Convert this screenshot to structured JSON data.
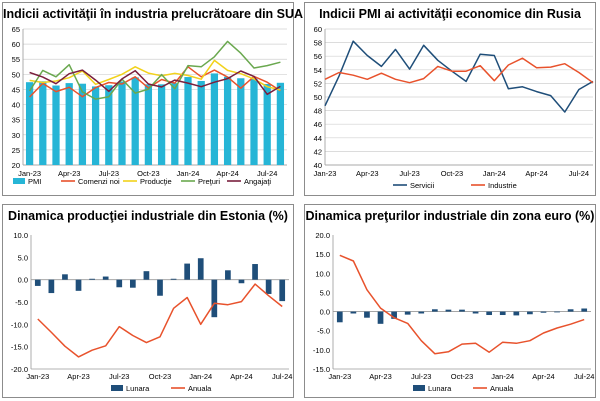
{
  "chart_data": [
    {
      "type": "bar+line",
      "title": "Indicii activităţii în industria prelucrătoare din SUA",
      "ylim": [
        20,
        65
      ],
      "yticks": [
        20,
        25,
        30,
        35,
        40,
        45,
        50,
        55,
        60,
        65
      ],
      "months": 20,
      "xlabels": [
        {
          "i": 0,
          "text": "Jan-23"
        },
        {
          "i": 3,
          "text": "Apr-23"
        },
        {
          "i": 6,
          "text": "Jul-23"
        },
        {
          "i": 9,
          "text": "Oct-23"
        },
        {
          "i": 12,
          "text": "Jan-24"
        },
        {
          "i": 15,
          "text": "Apr-24"
        },
        {
          "i": 18,
          "text": "Jul-24"
        }
      ],
      "bars": {
        "name": "PMI",
        "color": "#26b5d6",
        "values": [
          47.4,
          47.7,
          46.3,
          47.1,
          46.9,
          46.0,
          46.4,
          47.6,
          49.0,
          46.7,
          46.7,
          47.1,
          49.1,
          47.8,
          50.3,
          49.2,
          48.7,
          48.5,
          46.8,
          47.2
        ]
      },
      "lines": [
        {
          "name": "Comenzi noi",
          "color": "#e8522c",
          "values": [
            42.5,
            47.0,
            44.3,
            45.7,
            42.6,
            45.6,
            47.3,
            46.8,
            49.2,
            45.5,
            48.3,
            47.1,
            52.5,
            49.2,
            51.4,
            49.1,
            45.4,
            49.3,
            47.4,
            44.6
          ]
        },
        {
          "name": "Producţie",
          "color": "#f2d21c",
          "values": [
            48.0,
            47.3,
            47.8,
            48.9,
            51.1,
            46.7,
            48.3,
            50.0,
            52.5,
            50.4,
            49.5,
            50.3,
            49.6,
            48.4,
            54.6,
            51.3,
            50.2,
            48.5,
            45.9,
            44.8
          ]
        },
        {
          "name": "Preţuri",
          "color": "#6aa84f",
          "values": [
            44.5,
            51.3,
            49.2,
            53.2,
            44.2,
            41.8,
            42.6,
            48.4,
            43.8,
            45.1,
            49.9,
            45.2,
            52.9,
            52.5,
            55.8,
            60.9,
            57.0,
            52.1,
            52.9,
            54.0
          ]
        },
        {
          "name": "Angajaţi",
          "color": "#7a1f3d",
          "values": [
            50.6,
            49.1,
            46.9,
            50.2,
            51.4,
            48.1,
            44.4,
            48.5,
            51.2,
            46.8,
            45.8,
            48.1,
            47.1,
            45.9,
            47.4,
            48.6,
            51.1,
            49.3,
            43.4,
            46.0
          ]
        }
      ]
    },
    {
      "type": "line",
      "title": "Indicii PMI ai activităţii economice din Rusia",
      "ylim": [
        40,
        60
      ],
      "yticks": [
        40,
        42,
        44,
        46,
        48,
        50,
        52,
        54,
        56,
        58,
        60
      ],
      "months": 20,
      "xlabels": [
        {
          "i": 0,
          "text": "Jan-23"
        },
        {
          "i": 3,
          "text": "Apr-23"
        },
        {
          "i": 6,
          "text": "Jul-23"
        },
        {
          "i": 9,
          "text": "Oct-23"
        },
        {
          "i": 12,
          "text": "Jan-24"
        },
        {
          "i": 15,
          "text": "Apr-24"
        },
        {
          "i": 18,
          "text": "Jul-24"
        }
      ],
      "lines": [
        {
          "name": "Servicii",
          "color": "#1f4e79",
          "values": [
            48.7,
            53.1,
            58.2,
            56.1,
            54.5,
            57.0,
            54.1,
            57.6,
            55.4,
            53.8,
            52.3,
            56.3,
            56.1,
            51.2,
            51.5,
            50.8,
            50.2,
            47.8,
            51.1,
            52.3
          ]
        },
        {
          "name": "Industrie",
          "color": "#e8522c",
          "values": [
            52.6,
            53.6,
            53.2,
            52.6,
            53.5,
            52.6,
            52.1,
            52.7,
            54.5,
            53.8,
            53.8,
            54.6,
            52.4,
            54.7,
            55.7,
            54.3,
            54.4,
            54.9,
            53.6,
            52.1
          ]
        }
      ]
    },
    {
      "type": "bar+line",
      "title": "Dinamica producţiei industriale din Estonia (%)",
      "ylim": [
        -20,
        10
      ],
      "yticks": [
        -20,
        -15,
        -10,
        -5,
        0,
        5,
        10
      ],
      "ytick_labels": [
        "-20.0",
        "-15.0",
        "-10.0",
        "-5.0",
        "0.0",
        "5.0",
        "10.0"
      ],
      "months": 19,
      "xlabels": [
        {
          "i": 0,
          "text": "Jan-23"
        },
        {
          "i": 3,
          "text": "Apr-23"
        },
        {
          "i": 6,
          "text": "Jul-23"
        },
        {
          "i": 9,
          "text": "Oct-23"
        },
        {
          "i": 12,
          "text": "Jan-24"
        },
        {
          "i": 15,
          "text": "Apr-24"
        },
        {
          "i": 18,
          "text": "Jul-24"
        }
      ],
      "bars": {
        "name": "Lunara",
        "color": "#1f4e79",
        "values": [
          -1.4,
          -3.0,
          1.2,
          -2.5,
          0.2,
          0.7,
          -1.7,
          -1.8,
          1.9,
          -3.6,
          0.2,
          3.6,
          4.8,
          -8.4,
          2.1,
          -0.8,
          3.5,
          -3.2,
          -4.8
        ]
      },
      "lines": [
        {
          "name": "Anuala",
          "color": "#e8522c",
          "values": [
            -8.8,
            -11.8,
            -14.9,
            -17.3,
            -15.8,
            -14.8,
            -10.5,
            -12.5,
            -14.1,
            -12.8,
            -6.4,
            -4.0,
            -10.0,
            -5.3,
            -5.6,
            -4.9,
            -1.0,
            -3.6,
            -6.0
          ]
        }
      ]
    },
    {
      "type": "bar+line",
      "title": "Dinamica preţurilor industriale din zona euro (%)",
      "ylim": [
        -15,
        20
      ],
      "yticks": [
        -15,
        -10,
        -5,
        0,
        5,
        10,
        15,
        20
      ],
      "ytick_labels": [
        "-15.0",
        "-10.0",
        "-5.0",
        "0.0",
        "5.0",
        "10.0",
        "15.0",
        "20.0"
      ],
      "months": 19,
      "xlabels": [
        {
          "i": 0,
          "text": "Jan-23"
        },
        {
          "i": 3,
          "text": "Apr-23"
        },
        {
          "i": 6,
          "text": "Jul-23"
        },
        {
          "i": 9,
          "text": "Oct-23"
        },
        {
          "i": 12,
          "text": "Jan-24"
        },
        {
          "i": 15,
          "text": "Apr-24"
        },
        {
          "i": 18,
          "text": "Jul-24"
        }
      ],
      "bars": {
        "name": "Lunara",
        "color": "#1f4e79",
        "values": [
          -2.8,
          -0.5,
          -1.6,
          -3.2,
          -1.9,
          -0.8,
          -0.5,
          0.6,
          0.5,
          0.5,
          -0.5,
          -0.9,
          -0.9,
          -1.0,
          -0.7,
          -0.3,
          -0.1,
          0.6,
          0.8
        ]
      },
      "lines": [
        {
          "name": "Anuala",
          "color": "#e8522c",
          "values": [
            14.7,
            13.2,
            5.7,
            0.9,
            -1.6,
            -3.1,
            -7.6,
            -11.0,
            -10.5,
            -8.5,
            -8.3,
            -10.6,
            -8.0,
            -8.3,
            -7.6,
            -5.6,
            -4.3,
            -3.3,
            -2.1
          ]
        }
      ]
    }
  ]
}
